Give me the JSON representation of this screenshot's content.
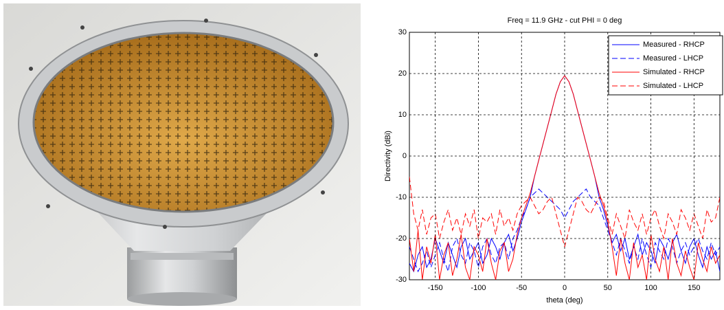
{
  "chart_data": {
    "type": "line",
    "title": "Freq = 11.9 GHz - cut PHI = 0 deg",
    "x_label": "theta (deg)",
    "y_label": "Directivity (dBi)",
    "x": [
      -180,
      -175,
      -170,
      -165,
      -160,
      -155,
      -150,
      -145,
      -140,
      -135,
      -130,
      -125,
      -120,
      -115,
      -110,
      -105,
      -100,
      -95,
      -90,
      -85,
      -80,
      -75,
      -70,
      -65,
      -60,
      -55,
      -50,
      -45,
      -40,
      -35,
      -30,
      -25,
      -20,
      -15,
      -10,
      -5,
      0,
      5,
      10,
      15,
      20,
      25,
      30,
      35,
      40,
      45,
      50,
      55,
      60,
      65,
      70,
      75,
      80,
      85,
      90,
      95,
      100,
      105,
      110,
      115,
      120,
      125,
      130,
      135,
      140,
      145,
      150,
      155,
      160,
      165,
      170,
      175,
      180
    ],
    "series": [
      {
        "name": "Measured - RHCP",
        "color": "#0000ff",
        "dash": false,
        "values": [
          -26,
          -28,
          -24,
          -22,
          -27,
          -25,
          -20,
          -23,
          -26,
          -21,
          -24,
          -27,
          -22,
          -20,
          -25,
          -23,
          -21,
          -26,
          -24,
          -20,
          -22,
          -25,
          -21,
          -19,
          -23,
          -20,
          -16,
          -13,
          -10,
          -5,
          -1,
          3,
          7,
          11,
          15,
          18,
          19.5,
          18,
          15,
          11,
          7,
          3,
          -1,
          -5,
          -10,
          -13,
          -17,
          -21,
          -19,
          -23,
          -20,
          -25,
          -22,
          -19,
          -24,
          -21,
          -23,
          -26,
          -20,
          -22,
          -25,
          -21,
          -19,
          -23,
          -26,
          -22,
          -20,
          -24,
          -27,
          -22,
          -25,
          -23,
          -28
        ]
      },
      {
        "name": "Measured - LHCP",
        "color": "#0000ff",
        "dash": true,
        "values": [
          -22,
          -25,
          -28,
          -26,
          -23,
          -27,
          -24,
          -21,
          -25,
          -28,
          -22,
          -20,
          -24,
          -26,
          -21,
          -23,
          -27,
          -22,
          -20,
          -24,
          -26,
          -22,
          -21,
          -25,
          -20,
          -18,
          -15,
          -13,
          -10,
          -9,
          -8,
          -9,
          -10,
          -11,
          -12,
          -13,
          -15,
          -13,
          -11,
          -10,
          -9,
          -8,
          -10,
          -11,
          -12,
          -15,
          -18,
          -21,
          -24,
          -20,
          -23,
          -26,
          -22,
          -25,
          -20,
          -24,
          -27,
          -21,
          -23,
          -25,
          -20,
          -22,
          -26,
          -23,
          -21,
          -24,
          -22,
          -20,
          -23,
          -25,
          -21,
          -24,
          -22
        ]
      },
      {
        "name": "Simulated - RHCP",
        "color": "#ff0000",
        "dash": false,
        "values": [
          -20,
          -28,
          -18,
          -30,
          -22,
          -26,
          -19,
          -30,
          -24,
          -21,
          -29,
          -25,
          -19,
          -27,
          -30,
          -22,
          -24,
          -28,
          -20,
          -26,
          -30,
          -23,
          -21,
          -28,
          -25,
          -19,
          -15,
          -12,
          -9,
          -5,
          -1,
          3,
          7,
          11,
          15,
          18,
          19.5,
          18,
          15,
          11,
          7,
          3,
          -1,
          -5,
          -9,
          -12,
          -16,
          -22,
          -29,
          -20,
          -26,
          -30,
          -21,
          -27,
          -24,
          -30,
          -19,
          -25,
          -28,
          -22,
          -30,
          -20,
          -26,
          -29,
          -23,
          -27,
          -30,
          -21,
          -25,
          -28,
          -22,
          -26,
          -24
        ]
      },
      {
        "name": "Simulated - LHCP",
        "color": "#ff0000",
        "dash": true,
        "values": [
          -5,
          -14,
          -18,
          -13,
          -19,
          -15,
          -14,
          -20,
          -16,
          -13,
          -18,
          -15,
          -19,
          -14,
          -17,
          -13,
          -20,
          -15,
          -16,
          -14,
          -19,
          -13,
          -17,
          -15,
          -18,
          -14,
          -12,
          -11,
          -10,
          -12,
          -14,
          -13,
          -11,
          -10,
          -14,
          -18,
          -22,
          -18,
          -14,
          -10,
          -11,
          -13,
          -14,
          -12,
          -10,
          -11,
          -15,
          -19,
          -14,
          -17,
          -20,
          -13,
          -16,
          -18,
          -14,
          -19,
          -15,
          -13,
          -17,
          -20,
          -14,
          -16,
          -19,
          -13,
          -15,
          -18,
          -14,
          -17,
          -20,
          -13,
          -16,
          -15,
          -10
        ]
      }
    ],
    "xlim": [
      -180,
      180
    ],
    "xticks": [
      -150,
      -100,
      -50,
      0,
      50,
      100,
      150
    ],
    "ylim": [
      -30,
      30
    ],
    "yticks": [
      -30,
      -20,
      -10,
      0,
      10,
      20,
      30
    ],
    "grid": true,
    "legend": "top-right"
  }
}
